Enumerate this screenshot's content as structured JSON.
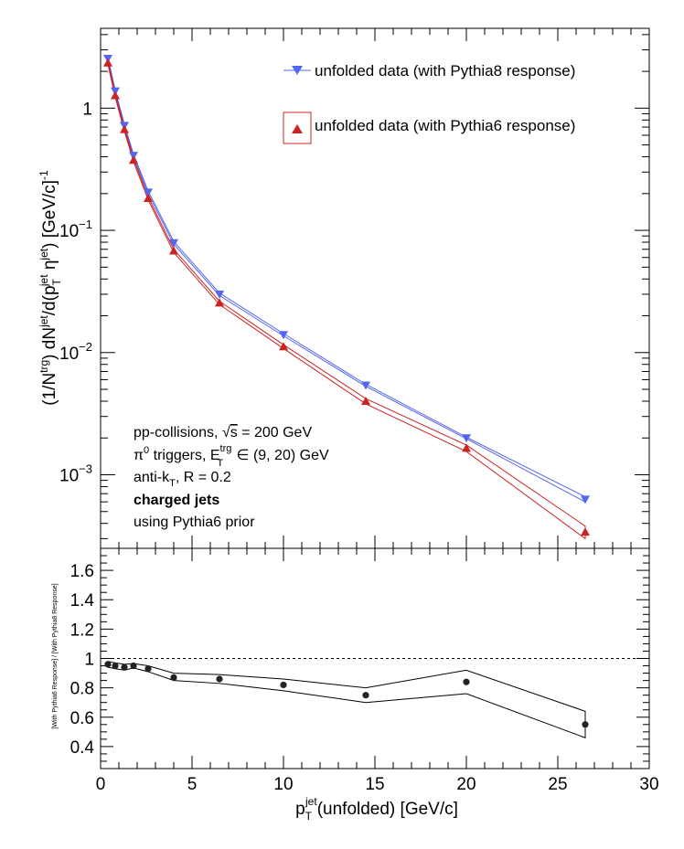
{
  "chart_data": [
    {
      "type": "line",
      "panel": "top",
      "ylabel_parts": {
        "a": "(1/N",
        "a_sup": "trg",
        "b": ") dN",
        "b_sup": "jet",
        "c": "/d(p",
        "c_sub": "T",
        "c_sup": "jet",
        "d": " η",
        "d_sup": "jet",
        "e": ") [GeV/c]",
        "e_sup": "-1"
      },
      "yscale": "log",
      "ylim": [
        0.00025,
        4.5
      ],
      "xlim": [
        0,
        30
      ],
      "y_ticks": [
        {
          "value": 1,
          "base": "1",
          "exp": ""
        },
        {
          "value": 0.1,
          "base": "10",
          "exp": "−1"
        },
        {
          "value": 0.01,
          "base": "10",
          "exp": "−2"
        },
        {
          "value": 0.001,
          "base": "10",
          "exp": "−3"
        }
      ],
      "x": [
        0.4,
        0.8,
        1.3,
        1.8,
        2.6,
        4.0,
        6.5,
        10.0,
        14.5,
        20.0,
        26.5
      ],
      "series": [
        {
          "name": "unfolded data (with Pythia8 response)",
          "color": "#5566ee",
          "marker": "triangle-down",
          "values": [
            2.55,
            1.38,
            0.72,
            0.41,
            0.205,
            0.079,
            0.03,
            0.014,
            0.0054,
            0.002,
            0.00063
          ],
          "band_upper": [
            2.6,
            1.41,
            0.74,
            0.42,
            0.21,
            0.081,
            0.0307,
            0.0143,
            0.0055,
            0.00203,
            0.00066
          ],
          "band_lower": [
            2.5,
            1.35,
            0.7,
            0.4,
            0.2,
            0.077,
            0.0293,
            0.0137,
            0.0053,
            0.00197,
            0.0006
          ]
        },
        {
          "name": "unfolded data (with Pythia6 response)",
          "color": "#cc2222",
          "marker": "triangle-up",
          "values": [
            2.35,
            1.27,
            0.67,
            0.375,
            0.183,
            0.068,
            0.0255,
            0.0112,
            0.004,
            0.00165,
            0.00034
          ],
          "band_upper": [
            2.42,
            1.31,
            0.69,
            0.385,
            0.188,
            0.07,
            0.0263,
            0.0116,
            0.0042,
            0.00175,
            0.00038
          ],
          "band_lower": [
            2.28,
            1.23,
            0.65,
            0.365,
            0.178,
            0.066,
            0.0247,
            0.0108,
            0.0038,
            0.00155,
            0.0003
          ]
        }
      ],
      "legend_placement": "top-right",
      "annotations": {
        "line1_a": "pp-collisions, ",
        "line1_sqrt": "√",
        "line1_s": "s",
        "line1_b": " = 200 GeV",
        "line2_a": "π",
        "line2_sup0": "0",
        "line2_b": " triggers, E",
        "line2_sup": "trg",
        "line2_sub": "T",
        "line2_c": " ∈ (9, 20) GeV",
        "line3_a": "anti-k",
        "line3_sub": "T",
        "line3_b": ", R = 0.2",
        "line4": "charged jets",
        "line5": "using Pythia6 prior"
      }
    },
    {
      "type": "scatter",
      "panel": "bottom",
      "ylabel": "[With Pythia6 Response] / [With Pythia8 Response]",
      "xlabel_parts": {
        "p": "p",
        "sub": "T",
        "sup": "jet",
        "rest": "(unfolded) [GeV/c]"
      },
      "xlim": [
        0,
        30
      ],
      "ylim": [
        0.25,
        1.75
      ],
      "y_ticks": [
        "0.4",
        "0.6",
        "0.8",
        "1",
        "1.2",
        "1.4",
        "1.6"
      ],
      "x_ticks": [
        "0",
        "5",
        "10",
        "15",
        "20",
        "25",
        "30"
      ],
      "reference_line": 1.0,
      "x": [
        0.4,
        0.8,
        1.3,
        1.8,
        2.6,
        4.0,
        6.5,
        10.0,
        14.5,
        20.0,
        26.5
      ],
      "values": [
        0.96,
        0.95,
        0.94,
        0.95,
        0.93,
        0.87,
        0.86,
        0.82,
        0.75,
        0.84,
        0.55
      ],
      "band_upper": [
        0.98,
        0.97,
        0.96,
        0.965,
        0.95,
        0.9,
        0.89,
        0.86,
        0.8,
        0.92,
        0.64
      ],
      "band_lower": [
        0.94,
        0.93,
        0.92,
        0.935,
        0.91,
        0.85,
        0.83,
        0.78,
        0.7,
        0.76,
        0.46
      ]
    }
  ]
}
